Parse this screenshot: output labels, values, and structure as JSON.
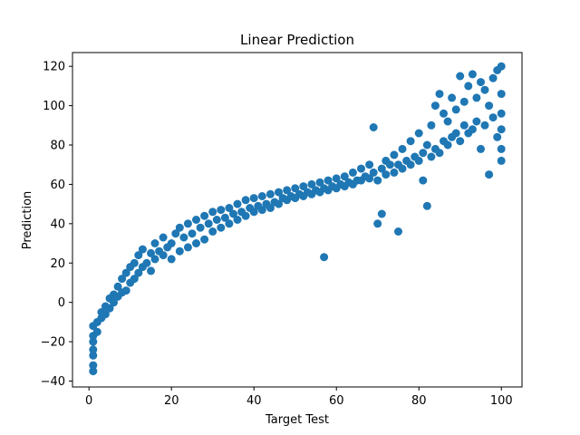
{
  "chart_data": {
    "type": "scatter",
    "title": "Linear Prediction",
    "xlabel": "Target Test",
    "ylabel": "Prediction",
    "xlim": [
      -4,
      105
    ],
    "ylim": [
      -43,
      127
    ],
    "xticks": [
      0,
      20,
      40,
      60,
      80,
      100
    ],
    "yticks": [
      -40,
      -20,
      0,
      20,
      40,
      60,
      80,
      100,
      120
    ],
    "grid": false,
    "legend": "none",
    "marker_color": "#1f77b4",
    "series": [
      {
        "points": [
          [
            1,
            -35
          ],
          [
            1,
            -32
          ],
          [
            1,
            -27
          ],
          [
            1,
            -24
          ],
          [
            1,
            -20
          ],
          [
            1,
            -17
          ],
          [
            1,
            -12
          ],
          [
            2,
            -15
          ],
          [
            2,
            -10
          ],
          [
            3,
            -8
          ],
          [
            3,
            -5
          ],
          [
            4,
            -6
          ],
          [
            4,
            -2
          ],
          [
            5,
            -3
          ],
          [
            5,
            2
          ],
          [
            6,
            0
          ],
          [
            6,
            4
          ],
          [
            7,
            3
          ],
          [
            7,
            8
          ],
          [
            8,
            5
          ],
          [
            8,
            12
          ],
          [
            9,
            6
          ],
          [
            9,
            15
          ],
          [
            10,
            10
          ],
          [
            10,
            18
          ],
          [
            11,
            12
          ],
          [
            11,
            20
          ],
          [
            12,
            15
          ],
          [
            12,
            24
          ],
          [
            13,
            18
          ],
          [
            13,
            27
          ],
          [
            14,
            20
          ],
          [
            15,
            25
          ],
          [
            15,
            16
          ],
          [
            16,
            22
          ],
          [
            16,
            30
          ],
          [
            17,
            26
          ],
          [
            18,
            24
          ],
          [
            18,
            33
          ],
          [
            19,
            28
          ],
          [
            20,
            30
          ],
          [
            20,
            22
          ],
          [
            21,
            35
          ],
          [
            22,
            26
          ],
          [
            22,
            38
          ],
          [
            23,
            33
          ],
          [
            24,
            28
          ],
          [
            24,
            40
          ],
          [
            25,
            35
          ],
          [
            26,
            30
          ],
          [
            26,
            42
          ],
          [
            27,
            38
          ],
          [
            28,
            32
          ],
          [
            28,
            44
          ],
          [
            29,
            40
          ],
          [
            30,
            36
          ],
          [
            30,
            46
          ],
          [
            31,
            42
          ],
          [
            32,
            38
          ],
          [
            32,
            47
          ],
          [
            33,
            43
          ],
          [
            34,
            40
          ],
          [
            34,
            48
          ],
          [
            35,
            45
          ],
          [
            36,
            42
          ],
          [
            36,
            50
          ],
          [
            37,
            46
          ],
          [
            38,
            44
          ],
          [
            38,
            52
          ],
          [
            39,
            48
          ],
          [
            40,
            46
          ],
          [
            40,
            53
          ],
          [
            41,
            49
          ],
          [
            42,
            47
          ],
          [
            42,
            54
          ],
          [
            43,
            50
          ],
          [
            44,
            48
          ],
          [
            44,
            55
          ],
          [
            45,
            51
          ],
          [
            46,
            50
          ],
          [
            46,
            56
          ],
          [
            47,
            53
          ],
          [
            48,
            52
          ],
          [
            48,
            57
          ],
          [
            49,
            54
          ],
          [
            50,
            53
          ],
          [
            50,
            58
          ],
          [
            51,
            55
          ],
          [
            52,
            54
          ],
          [
            52,
            59
          ],
          [
            53,
            56
          ],
          [
            54,
            55
          ],
          [
            54,
            60
          ],
          [
            55,
            57
          ],
          [
            56,
            56
          ],
          [
            56,
            61
          ],
          [
            57,
            58
          ],
          [
            57,
            23
          ],
          [
            58,
            57
          ],
          [
            58,
            62
          ],
          [
            59,
            59
          ],
          [
            60,
            58
          ],
          [
            60,
            63
          ],
          [
            61,
            60
          ],
          [
            62,
            59
          ],
          [
            62,
            64
          ],
          [
            63,
            61
          ],
          [
            64,
            60
          ],
          [
            64,
            66
          ],
          [
            65,
            62
          ],
          [
            66,
            62
          ],
          [
            66,
            68
          ],
          [
            67,
            64
          ],
          [
            68,
            63
          ],
          [
            68,
            70
          ],
          [
            69,
            66
          ],
          [
            69,
            89
          ],
          [
            70,
            40
          ],
          [
            70,
            62
          ],
          [
            71,
            68
          ],
          [
            71,
            45
          ],
          [
            72,
            65
          ],
          [
            72,
            72
          ],
          [
            73,
            70
          ],
          [
            74,
            66
          ],
          [
            74,
            75
          ],
          [
            75,
            36
          ],
          [
            75,
            70
          ],
          [
            76,
            68
          ],
          [
            76,
            78
          ],
          [
            77,
            72
          ],
          [
            78,
            70
          ],
          [
            78,
            82
          ],
          [
            79,
            74
          ],
          [
            80,
            72
          ],
          [
            80,
            86
          ],
          [
            81,
            62
          ],
          [
            81,
            76
          ],
          [
            82,
            49
          ],
          [
            82,
            80
          ],
          [
            83,
            74
          ],
          [
            83,
            90
          ],
          [
            84,
            78
          ],
          [
            84,
            100
          ],
          [
            85,
            76
          ],
          [
            85,
            106
          ],
          [
            86,
            82
          ],
          [
            86,
            96
          ],
          [
            87,
            80
          ],
          [
            87,
            92
          ],
          [
            88,
            84
          ],
          [
            88,
            104
          ],
          [
            89,
            86
          ],
          [
            89,
            98
          ],
          [
            90,
            82
          ],
          [
            90,
            115
          ],
          [
            91,
            90
          ],
          [
            91,
            102
          ],
          [
            92,
            86
          ],
          [
            92,
            110
          ],
          [
            93,
            88
          ],
          [
            93,
            116
          ],
          [
            94,
            92
          ],
          [
            94,
            104
          ],
          [
            95,
            78
          ],
          [
            95,
            112
          ],
          [
            96,
            90
          ],
          [
            96,
            108
          ],
          [
            97,
            65
          ],
          [
            97,
            100
          ],
          [
            98,
            94
          ],
          [
            98,
            114
          ],
          [
            99,
            84
          ],
          [
            99,
            118
          ],
          [
            100,
            72
          ],
          [
            100,
            120
          ],
          [
            100,
            96
          ],
          [
            100,
            106
          ],
          [
            100,
            78
          ],
          [
            100,
            88
          ]
        ]
      }
    ]
  }
}
